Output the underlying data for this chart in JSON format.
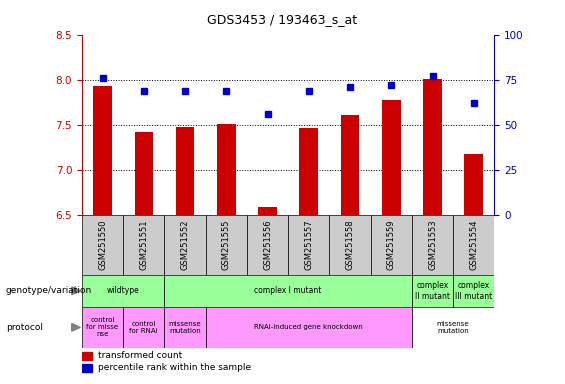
{
  "title": "GDS3453 / 193463_s_at",
  "samples": [
    "GSM251550",
    "GSM251551",
    "GSM251552",
    "GSM251555",
    "GSM251556",
    "GSM251557",
    "GSM251558",
    "GSM251559",
    "GSM251553",
    "GSM251554"
  ],
  "red_values": [
    7.93,
    7.42,
    7.48,
    7.51,
    6.59,
    7.47,
    7.61,
    7.78,
    8.01,
    7.18
  ],
  "blue_values": [
    76,
    69,
    69,
    69,
    56,
    69,
    71,
    72,
    77,
    62
  ],
  "ylim_left": [
    6.5,
    8.5
  ],
  "ylim_right": [
    0,
    100
  ],
  "yticks_left": [
    6.5,
    7.0,
    7.5,
    8.0,
    8.5
  ],
  "yticks_right": [
    0,
    25,
    50,
    75,
    100
  ],
  "red_color": "#cc0000",
  "blue_color": "#0000cc",
  "base_value": 6.5,
  "geno_spans": [
    [
      0,
      2,
      "#99ff99",
      "wildtype"
    ],
    [
      2,
      8,
      "#99ff99",
      "complex I mutant"
    ],
    [
      8,
      9,
      "#99ff99",
      "complex\nII mutant"
    ],
    [
      9,
      10,
      "#99ff99",
      "complex\nIII mutant"
    ]
  ],
  "proto_spans": [
    [
      0,
      1,
      "#ff99ff",
      "control\nfor misse\nnse"
    ],
    [
      1,
      2,
      "#ff99ff",
      "control\nfor RNAi"
    ],
    [
      2,
      3,
      "#ff99ff",
      "missense\nmutation"
    ],
    [
      3,
      8,
      "#ff99ff",
      "RNAi-induced gene knockdown"
    ],
    [
      8,
      10,
      "#ffffff",
      "missense\nmutation"
    ]
  ],
  "bg_color": "#cccccc",
  "grid_lines": [
    7.0,
    7.5,
    8.0
  ]
}
